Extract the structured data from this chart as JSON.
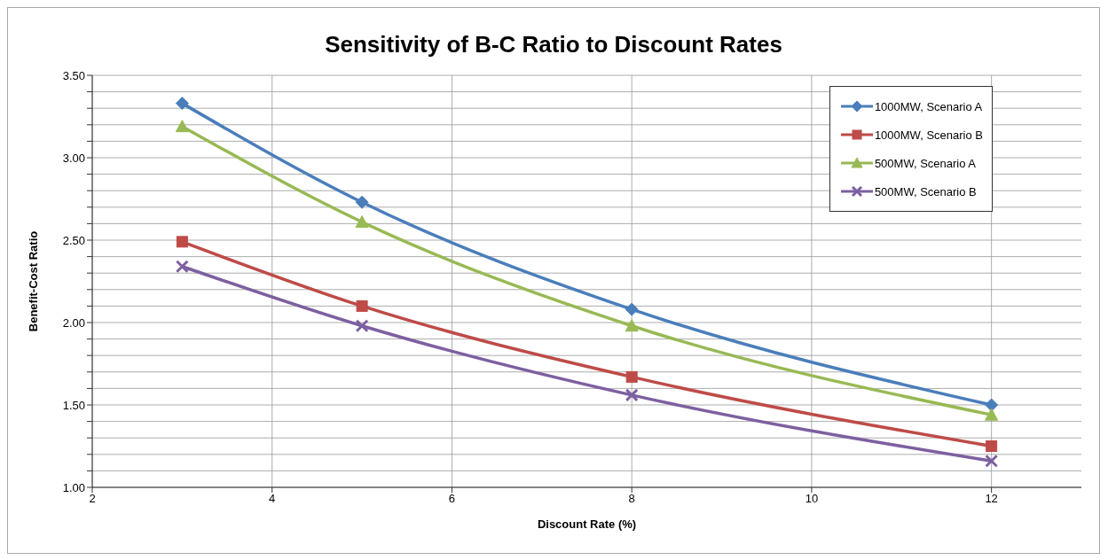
{
  "chart_data": {
    "type": "line",
    "title": "Sensitivity of B-C Ratio to Discount Rates",
    "xlabel": "Discount Rate (%)",
    "ylabel": "Benefit-Cost Ratio",
    "x": [
      3,
      5,
      8,
      12
    ],
    "series": [
      {
        "name": "1000MW, Scenario A",
        "color": "#4a7ebb",
        "marker": "diamond",
        "values": [
          3.33,
          2.73,
          2.08,
          1.5
        ]
      },
      {
        "name": "1000MW, Scenario B",
        "color": "#be4b48",
        "marker": "square",
        "values": [
          2.49,
          2.1,
          1.67,
          1.25
        ]
      },
      {
        "name": "500MW, Scenario A",
        "color": "#98b954",
        "marker": "triangle",
        "values": [
          3.19,
          2.61,
          1.98,
          1.44
        ]
      },
      {
        "name": "500MW, Scenario B",
        "color": "#7d60a0",
        "marker": "cross",
        "values": [
          2.34,
          1.98,
          1.56,
          1.16
        ]
      }
    ],
    "xlim": [
      2,
      13
    ],
    "xticks": [
      2,
      4,
      6,
      8,
      10,
      12
    ],
    "ylim": [
      1,
      3.5
    ],
    "yticks": [
      {
        "value": 1,
        "label": "1.00"
      },
      {
        "value": 1.1,
        "label": null
      },
      {
        "value": 1.2,
        "label": null
      },
      {
        "value": 1.3,
        "label": null
      },
      {
        "value": 1.4,
        "label": null
      },
      {
        "value": 1.5,
        "label": "1.50"
      },
      {
        "value": 1.6,
        "label": null
      },
      {
        "value": 1.7,
        "label": null
      },
      {
        "value": 1.8,
        "label": null
      },
      {
        "value": 1.9,
        "label": null
      },
      {
        "value": 2,
        "label": "2.00"
      },
      {
        "value": 2.1,
        "label": null
      },
      {
        "value": 2.2,
        "label": null
      },
      {
        "value": 2.3,
        "label": null
      },
      {
        "value": 2.4,
        "label": null
      },
      {
        "value": 2.5,
        "label": "2.50"
      },
      {
        "value": 2.6,
        "label": null
      },
      {
        "value": 2.7,
        "label": null
      },
      {
        "value": 2.8,
        "label": null
      },
      {
        "value": 2.9,
        "label": null
      },
      {
        "value": 3,
        "label": "3.00"
      },
      {
        "value": 3.1,
        "label": null
      },
      {
        "value": 3.2,
        "label": null
      },
      {
        "value": 3.3,
        "label": null
      },
      {
        "value": 3.4,
        "label": null
      },
      {
        "value": 3.5,
        "label": "3.50"
      }
    ],
    "grid": true,
    "legend": "top right",
    "line_style": "solid"
  }
}
